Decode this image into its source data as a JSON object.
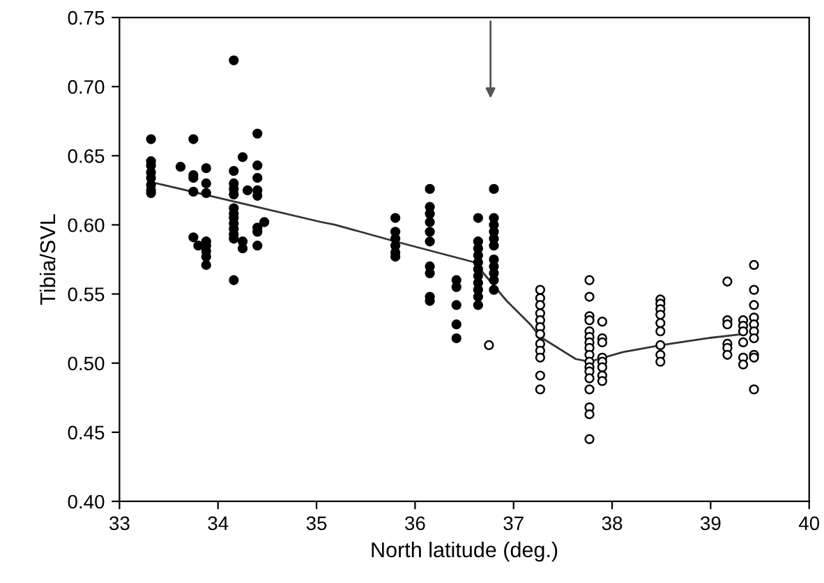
{
  "chart_data": {
    "type": "scatter",
    "xlabel": "North latitude (deg.)",
    "ylabel": "Tibia/SVL",
    "xlim": [
      33,
      40
    ],
    "xticks": [
      33,
      34,
      35,
      36,
      37,
      38,
      39,
      40
    ],
    "ylim": [
      0.4,
      0.75
    ],
    "yticks": [
      {
        "value": 0.4,
        "label": "0.40"
      },
      0.45,
      {
        "value": 0.5,
        "label": "0.50"
      },
      0.55,
      {
        "value": 0.6,
        "label": "0.60"
      },
      0.65,
      {
        "value": 0.7,
        "label": "0.70"
      },
      0.75
    ],
    "grid": false,
    "legend": false,
    "marker": "circle",
    "series": [
      {
        "color": "#000000",
        "x": [
          33.32,
          33.32,
          33.32,
          33.32,
          33.32,
          33.32,
          33.32,
          33.32,
          33.62,
          33.75,
          33.75,
          33.75,
          33.75,
          33.75,
          33.88,
          33.88,
          33.88,
          33.88,
          33.88,
          33.88,
          33.88,
          33.88,
          33.8,
          34.16,
          34.16,
          34.16,
          34.16,
          34.16,
          34.16,
          34.16,
          34.16,
          34.16,
          34.16,
          34.16,
          34.16,
          34.16,
          34.25,
          34.25,
          34.25,
          34.4,
          34.4,
          34.4,
          34.4,
          34.4,
          34.4,
          34.4,
          34.4,
          34.47,
          34.3,
          35.8,
          35.8,
          35.8,
          35.8,
          35.8,
          35.8,
          36.15,
          36.15,
          36.15,
          36.15,
          36.15,
          36.15,
          36.15,
          36.15,
          36.15,
          36.15,
          36.42,
          36.42,
          36.42,
          36.42,
          36.42,
          36.64,
          36.64,
          36.64,
          36.64,
          36.64,
          36.64,
          36.64,
          36.64,
          36.64,
          36.64,
          36.64,
          36.8,
          36.8,
          36.8,
          36.8,
          36.8,
          36.8,
          36.8,
          36.8,
          36.8,
          36.8,
          36.8
        ],
        "values": [
          0.662,
          0.646,
          0.643,
          0.638,
          0.634,
          0.629,
          0.625,
          0.623,
          0.642,
          0.662,
          0.636,
          0.634,
          0.624,
          0.591,
          0.641,
          0.63,
          0.623,
          0.588,
          0.585,
          0.581,
          0.577,
          0.571,
          0.585,
          0.719,
          0.639,
          0.63,
          0.626,
          0.622,
          0.612,
          0.608,
          0.605,
          0.601,
          0.597,
          0.593,
          0.59,
          0.56,
          0.649,
          0.588,
          0.583,
          0.666,
          0.643,
          0.634,
          0.625,
          0.621,
          0.598,
          0.595,
          0.585,
          0.602,
          0.625,
          0.605,
          0.595,
          0.59,
          0.585,
          0.58,
          0.577,
          0.626,
          0.613,
          0.608,
          0.602,
          0.595,
          0.588,
          0.57,
          0.565,
          0.548,
          0.545,
          0.56,
          0.555,
          0.542,
          0.528,
          0.518,
          0.605,
          0.588,
          0.583,
          0.578,
          0.573,
          0.568,
          0.563,
          0.558,
          0.553,
          0.548,
          0.542,
          0.626,
          0.605,
          0.6,
          0.595,
          0.59,
          0.585,
          0.575,
          0.57,
          0.565,
          0.56,
          0.553
        ]
      },
      {
        "color": "#ffffff",
        "x": [
          36.75,
          37.27,
          37.27,
          37.27,
          37.27,
          37.27,
          37.27,
          37.27,
          37.27,
          37.27,
          37.27,
          37.27,
          37.27,
          37.77,
          37.77,
          37.77,
          37.77,
          37.77,
          37.77,
          37.77,
          37.77,
          37.77,
          37.77,
          37.77,
          37.77,
          37.77,
          37.77,
          37.77,
          37.77,
          37.77,
          37.9,
          37.9,
          37.9,
          37.9,
          37.9,
          37.9,
          37.9,
          37.9,
          38.49,
          38.49,
          38.49,
          38.49,
          38.49,
          38.49,
          38.49,
          38.49,
          38.49,
          39.17,
          39.17,
          39.17,
          39.17,
          39.17,
          39.17,
          39.33,
          39.33,
          39.33,
          39.33,
          39.33,
          39.33,
          39.44,
          39.44,
          39.44,
          39.44,
          39.44,
          39.44,
          39.44,
          39.44,
          39.44,
          39.44
        ],
        "values": [
          0.513,
          0.553,
          0.547,
          0.542,
          0.536,
          0.531,
          0.526,
          0.521,
          0.514,
          0.509,
          0.504,
          0.491,
          0.481,
          0.56,
          0.548,
          0.534,
          0.531,
          0.523,
          0.519,
          0.515,
          0.511,
          0.506,
          0.501,
          0.497,
          0.494,
          0.489,
          0.481,
          0.468,
          0.463,
          0.445,
          0.53,
          0.518,
          0.515,
          0.504,
          0.501,
          0.497,
          0.491,
          0.487,
          0.546,
          0.543,
          0.539,
          0.535,
          0.529,
          0.523,
          0.513,
          0.506,
          0.501,
          0.559,
          0.531,
          0.528,
          0.514,
          0.511,
          0.506,
          0.531,
          0.527,
          0.523,
          0.515,
          0.504,
          0.499,
          0.571,
          0.553,
          0.542,
          0.533,
          0.528,
          0.523,
          0.518,
          0.506,
          0.504,
          0.481
        ]
      },
      {
        "type": "line",
        "color": "#333333",
        "marker": "none",
        "x": [
          33.32,
          35.05,
          35.19,
          35.8,
          36.6,
          36.93,
          37.17,
          37.27,
          37.63,
          37.77,
          38.11,
          38.5,
          38.96,
          39.33
        ],
        "values": [
          0.631,
          0.602,
          0.6,
          0.588,
          0.573,
          0.545,
          0.528,
          0.519,
          0.503,
          0.501,
          0.508,
          0.513,
          0.518,
          0.521
        ]
      }
    ]
  }
}
